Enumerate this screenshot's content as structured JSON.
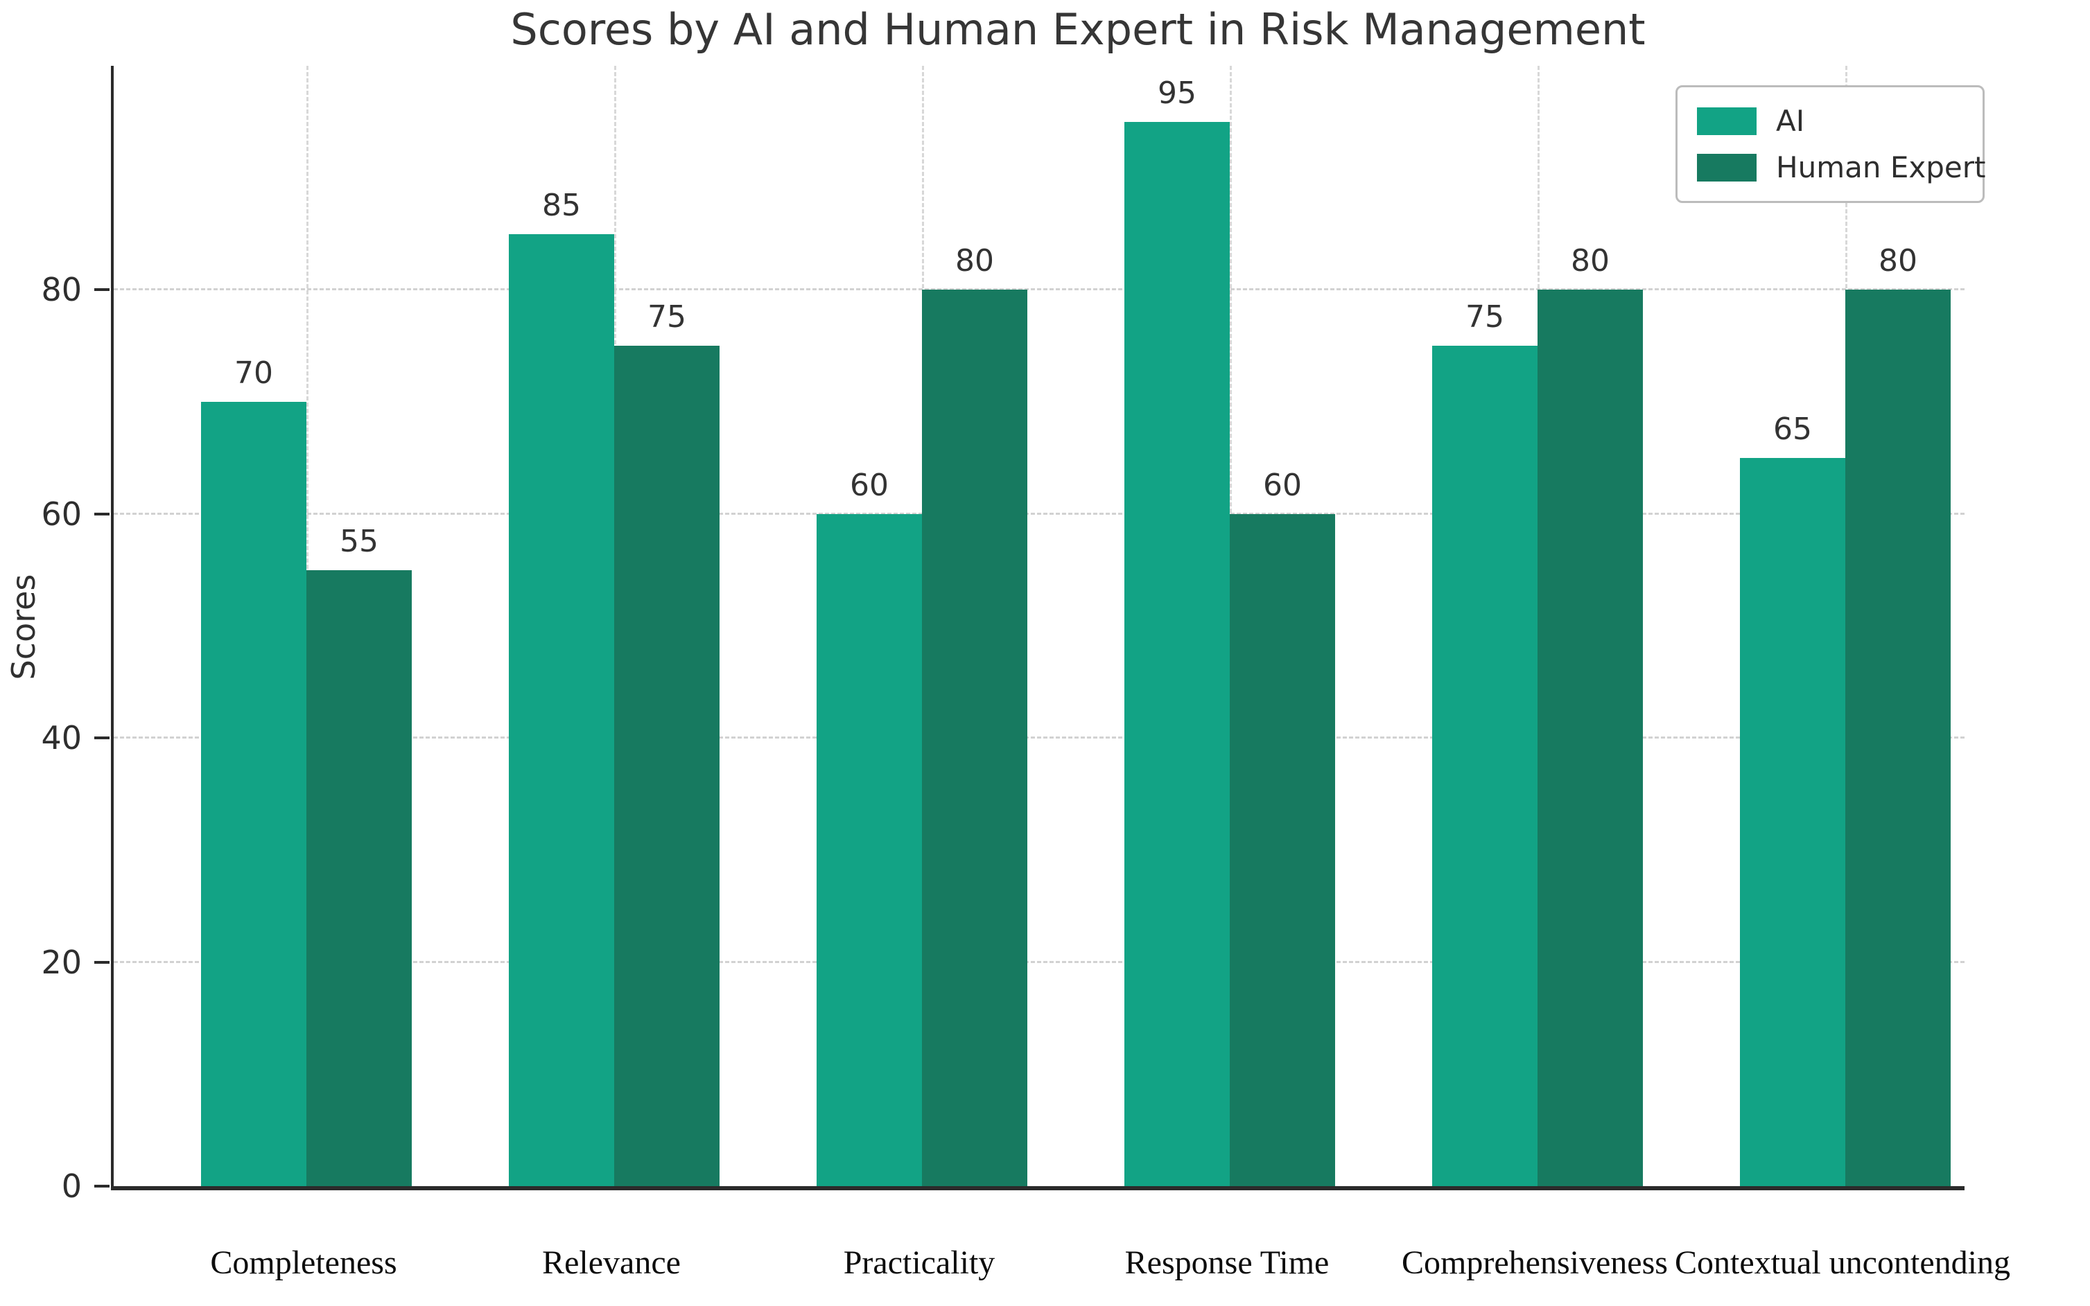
{
  "chart_data": {
    "type": "bar",
    "title": "Scores by AI and Human Expert in Risk Management",
    "xlabel": "",
    "ylabel": "Scores",
    "categories": [
      "Completeness",
      "Relevance",
      "Practicality",
      "Response Time",
      "Comprehensiveness",
      "Contextual uncontending"
    ],
    "series": [
      {
        "name": "AI",
        "color": "#12a385",
        "values": [
          70,
          85,
          60,
          95,
          75,
          65
        ]
      },
      {
        "name": "Human Expert",
        "color": "#177a60",
        "values": [
          55,
          75,
          80,
          60,
          80,
          80
        ]
      }
    ],
    "ylim": [
      0,
      100
    ],
    "yticks": [
      0,
      20,
      40,
      60,
      80
    ],
    "grid": "dashed horizontal and vertical gridlines",
    "legend_position": "upper right",
    "bar_value_labels": true
  },
  "colors": {
    "ai_series": "#12a385",
    "human_series": "#177a60",
    "grid_line": "#d2d2d2",
    "axis_spine": "#2b2b2b",
    "text": "#2e2e2e",
    "background": "#ffffff"
  }
}
